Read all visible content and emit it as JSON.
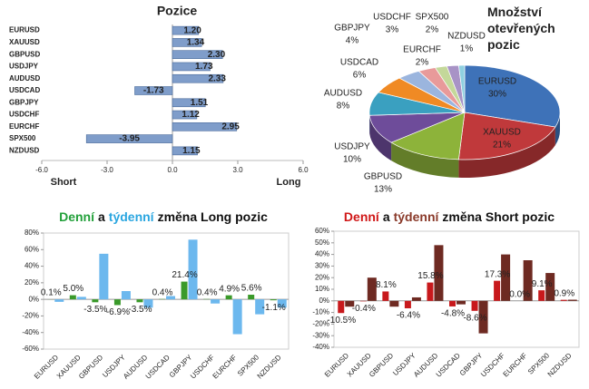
{
  "chart_data": [
    {
      "type": "bar",
      "orientation": "horizontal",
      "title": "Pozice",
      "categories": [
        "EURUSD",
        "XAUUSD",
        "GBPUSD",
        "USDJPY",
        "AUDUSD",
        "USDCAD",
        "GBPJPY",
        "USDCHF",
        "EURCHF",
        "SPX500",
        "NZDUSD"
      ],
      "values": [
        1.2,
        1.34,
        2.3,
        1.73,
        2.33,
        -1.73,
        1.51,
        1.12,
        2.95,
        -3.95,
        1.15
      ],
      "value_labels": [
        "1.20",
        "1.34",
        "2.30",
        "1.73",
        "2.33",
        "-1.73",
        "1.51",
        "1.12",
        "2.95",
        "-3.95",
        "1.15"
      ],
      "color": "#7f9dca",
      "xlim": [
        -6,
        6
      ],
      "xticks": [
        {
          "value": -6,
          "label": "-6.0"
        },
        {
          "value": -3,
          "label": "-3.0"
        },
        {
          "value": 0,
          "label": "0.0"
        },
        {
          "value": 3,
          "label": "3.0"
        },
        {
          "value": 6,
          "label": "6.0"
        }
      ],
      "xlabel_left": "Short",
      "xlabel_right": "Long"
    },
    {
      "type": "pie",
      "title": "Množství otevřených pozic",
      "categories": [
        "EURUSD",
        "XAUUSD",
        "GBPUSD",
        "USDJPY",
        "AUDUSD",
        "USDCAD",
        "GBPJPY",
        "USDCHF",
        "EURCHF",
        "SPX500",
        "NZDUSD"
      ],
      "values": [
        30,
        21,
        13,
        10,
        8,
        6,
        4,
        3,
        2,
        2,
        1
      ],
      "value_labels": [
        "30%",
        "21%",
        "13%",
        "10%",
        "8%",
        "6%",
        "4%",
        "3%",
        "2%",
        "2%",
        "1%"
      ],
      "colors": [
        "#3e72b8",
        "#c0393b",
        "#8db33a",
        "#6e4c9a",
        "#3aa0c0",
        "#f08a24",
        "#9bb5de",
        "#e89a9a",
        "#c4d89a",
        "#a893c6",
        "#8fd0e0"
      ]
    },
    {
      "type": "bar",
      "orientation": "vertical",
      "title_parts": [
        {
          "text": "Denní",
          "color": "#22a03a"
        },
        {
          "text": "a",
          "color": "#111111"
        },
        {
          "text": "týdenní",
          "color": "#2aa6e0"
        },
        {
          "text": "změna Long pozic",
          "color": "#111111"
        }
      ],
      "categories": [
        "EURUSD",
        "XAUUSD",
        "GBPUSD",
        "USDJPY",
        "AUDUSD",
        "USDCAD",
        "GBPJPY",
        "USDCHF",
        "EURCHF",
        "SPX500",
        "NZDUSD"
      ],
      "series": [
        {
          "color": "#3a9a2a",
          "values": [
            0.1,
            5.0,
            -3.5,
            -6.9,
            -3.5,
            0.4,
            21.4,
            0.4,
            4.9,
            5.6,
            -1.1
          ],
          "value_labels": [
            "0.1%",
            "5.0%",
            "-3.5%",
            "-6.9%",
            "-3.5%",
            "0.4%",
            "21.4%",
            "0.4%",
            "4.9%",
            "5.6%",
            "-1.1%"
          ]
        },
        {
          "color": "#6cb8ee",
          "values": [
            -3,
            3,
            55,
            10,
            -10,
            4,
            72,
            -5,
            -42,
            -18,
            -10
          ]
        }
      ],
      "ylim": [
        -60,
        80
      ],
      "yticks": [
        {
          "value": -60,
          "label": "-60%"
        },
        {
          "value": -40,
          "label": "-40%"
        },
        {
          "value": -20,
          "label": "-20%"
        },
        {
          "value": 0,
          "label": "0%"
        },
        {
          "value": 20,
          "label": "20%"
        },
        {
          "value": 40,
          "label": "40%"
        },
        {
          "value": 60,
          "label": "60%"
        },
        {
          "value": 80,
          "label": "80%"
        }
      ]
    },
    {
      "type": "bar",
      "orientation": "vertical",
      "title_parts": [
        {
          "text": "Denní",
          "color": "#d01818"
        },
        {
          "text": "a",
          "color": "#111111"
        },
        {
          "text": "týdenní",
          "color": "#8a3a2a"
        },
        {
          "text": "změna Short pozic",
          "color": "#111111"
        }
      ],
      "categories": [
        "EURUSD",
        "XAUUSD",
        "GBPUSD",
        "USDJPY",
        "AUDUSD",
        "USDCAD",
        "GBPJPY",
        "USDCHF",
        "EURCHF",
        "SPX500",
        "NZDUSD"
      ],
      "series": [
        {
          "color": "#c8191c",
          "values": [
            -10.5,
            -0.4,
            8.1,
            -6.4,
            15.8,
            -4.8,
            -8.6,
            17.3,
            0.0,
            9.1,
            0.9
          ],
          "value_labels": [
            "-10.5%",
            "-0.4%",
            "8.1%",
            "-6.4%",
            "15.8%",
            "-4.8%",
            "-8.6%",
            "17.3%",
            "0.0%",
            "9.1%",
            "0.9%"
          ]
        },
        {
          "color": "#6e2a22",
          "values": [
            -5,
            20,
            -5,
            3,
            48,
            -3,
            -28,
            40,
            35,
            24,
            1
          ]
        }
      ],
      "ylim": [
        -40,
        60
      ],
      "yticks": [
        {
          "value": -40,
          "label": "-40%"
        },
        {
          "value": -30,
          "label": "-30%"
        },
        {
          "value": -20,
          "label": "-20%"
        },
        {
          "value": -10,
          "label": "-10%"
        },
        {
          "value": 0,
          "label": "0%"
        },
        {
          "value": 10,
          "label": "10%"
        },
        {
          "value": 20,
          "label": "20%"
        },
        {
          "value": 30,
          "label": "30%"
        },
        {
          "value": 40,
          "label": "40%"
        },
        {
          "value": 50,
          "label": "50%"
        },
        {
          "value": 60,
          "label": "60%"
        }
      ]
    }
  ]
}
